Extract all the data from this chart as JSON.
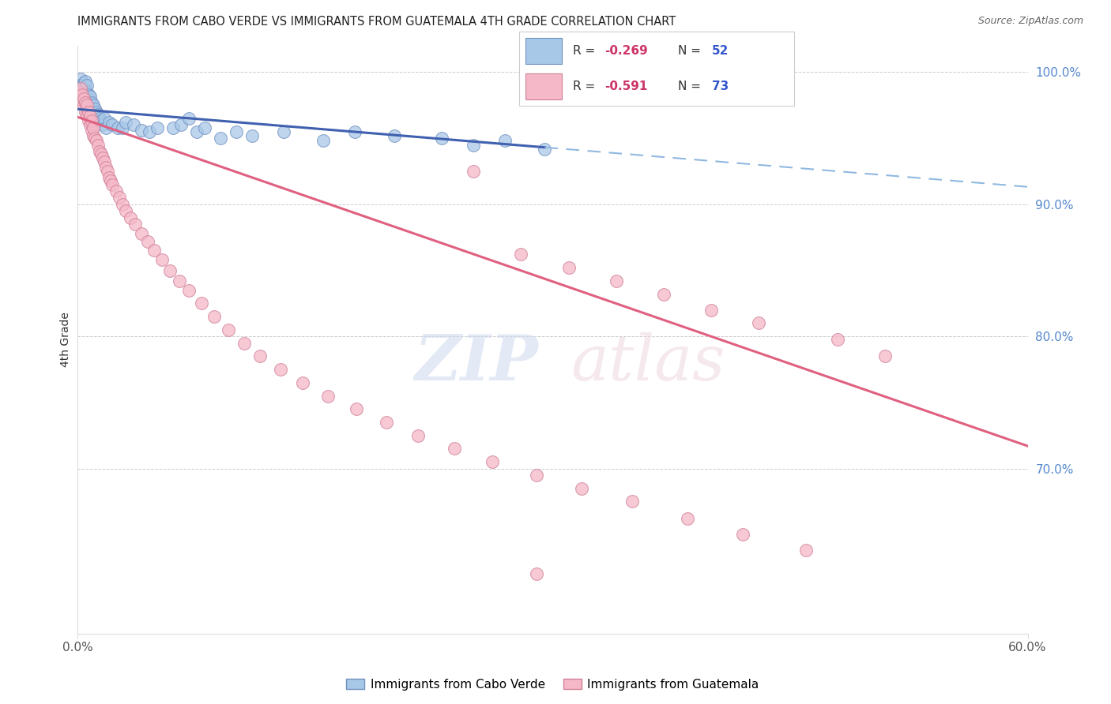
{
  "title": "IMMIGRANTS FROM CABO VERDE VS IMMIGRANTS FROM GUATEMALA 4TH GRADE CORRELATION CHART",
  "source": "Source: ZipAtlas.com",
  "ylabel_left": "4th Grade",
  "x_min": 0.0,
  "x_max": 0.6,
  "y_min": 0.575,
  "y_max": 1.02,
  "y_ticks": [
    1.0,
    0.9,
    0.8,
    0.7
  ],
  "x_ticks": [
    0.0,
    0.6
  ],
  "x_tick_labels": [
    "0.0%",
    "60.0%"
  ],
  "y_tick_labels": [
    "100.0%",
    "90.0%",
    "80.0%",
    "70.0%"
  ],
  "cabo_verde_color": "#a8c8e8",
  "guatemala_color": "#f5b8c8",
  "cabo_verde_edge": "#7090c0",
  "guatemala_edge": "#d08098",
  "trend_blue_solid": "#4060b0",
  "trend_pink_solid": "#e06080",
  "trend_blue_dashed": "#90b8e0",
  "legend_R_cabo": "-0.269",
  "legend_N_cabo": "52",
  "legend_R_guat": "-0.591",
  "legend_N_guat": "73",
  "cabo_verde_x": [
    0.001,
    0.002,
    0.003,
    0.003,
    0.004,
    0.004,
    0.005,
    0.005,
    0.005,
    0.006,
    0.006,
    0.007,
    0.007,
    0.008,
    0.008,
    0.009,
    0.009,
    0.01,
    0.01,
    0.011,
    0.012,
    0.013,
    0.014,
    0.015,
    0.016,
    0.017,
    0.018,
    0.02,
    0.022,
    0.025,
    0.028,
    0.03,
    0.035,
    0.04,
    0.045,
    0.05,
    0.06,
    0.065,
    0.07,
    0.075,
    0.08,
    0.09,
    0.1,
    0.11,
    0.13,
    0.155,
    0.175,
    0.2,
    0.23,
    0.25,
    0.27,
    0.295
  ],
  "cabo_verde_y": [
    0.99,
    0.995,
    0.985,
    0.99,
    0.988,
    0.992,
    0.982,
    0.988,
    0.993,
    0.985,
    0.99,
    0.978,
    0.983,
    0.975,
    0.982,
    0.97,
    0.977,
    0.968,
    0.975,
    0.972,
    0.97,
    0.968,
    0.965,
    0.963,
    0.96,
    0.965,
    0.958,
    0.962,
    0.96,
    0.958,
    0.958,
    0.962,
    0.96,
    0.956,
    0.955,
    0.958,
    0.958,
    0.96,
    0.965,
    0.955,
    0.958,
    0.95,
    0.955,
    0.952,
    0.955,
    0.948,
    0.955,
    0.952,
    0.95,
    0.945,
    0.948,
    0.942
  ],
  "guatemala_x": [
    0.001,
    0.002,
    0.002,
    0.003,
    0.003,
    0.004,
    0.004,
    0.005,
    0.005,
    0.006,
    0.006,
    0.007,
    0.007,
    0.008,
    0.008,
    0.009,
    0.009,
    0.01,
    0.01,
    0.011,
    0.012,
    0.013,
    0.014,
    0.015,
    0.016,
    0.017,
    0.018,
    0.019,
    0.02,
    0.021,
    0.022,
    0.024,
    0.026,
    0.028,
    0.03,
    0.033,
    0.036,
    0.04,
    0.044,
    0.048,
    0.053,
    0.058,
    0.064,
    0.07,
    0.078,
    0.086,
    0.095,
    0.105,
    0.115,
    0.128,
    0.142,
    0.158,
    0.176,
    0.195,
    0.215,
    0.238,
    0.262,
    0.29,
    0.318,
    0.35,
    0.385,
    0.42,
    0.46,
    0.28,
    0.31,
    0.34,
    0.37,
    0.4,
    0.43,
    0.25,
    0.48,
    0.51,
    0.29
  ],
  "guatemala_y": [
    0.985,
    0.982,
    0.988,
    0.978,
    0.983,
    0.975,
    0.98,
    0.97,
    0.977,
    0.968,
    0.975,
    0.963,
    0.97,
    0.96,
    0.967,
    0.956,
    0.963,
    0.952,
    0.958,
    0.95,
    0.948,
    0.945,
    0.94,
    0.938,
    0.935,
    0.932,
    0.928,
    0.925,
    0.92,
    0.918,
    0.915,
    0.91,
    0.905,
    0.9,
    0.895,
    0.89,
    0.885,
    0.878,
    0.872,
    0.865,
    0.858,
    0.85,
    0.842,
    0.835,
    0.825,
    0.815,
    0.805,
    0.795,
    0.785,
    0.775,
    0.765,
    0.755,
    0.745,
    0.735,
    0.725,
    0.715,
    0.705,
    0.695,
    0.685,
    0.675,
    0.662,
    0.65,
    0.638,
    0.862,
    0.852,
    0.842,
    0.832,
    0.82,
    0.81,
    0.925,
    0.798,
    0.785,
    0.62
  ],
  "blue_trend_x_solid_end": 0.295,
  "blue_trend_intercept": 0.972,
  "blue_trend_slope": -0.098,
  "pink_trend_intercept": 0.966,
  "pink_trend_slope": -0.415
}
